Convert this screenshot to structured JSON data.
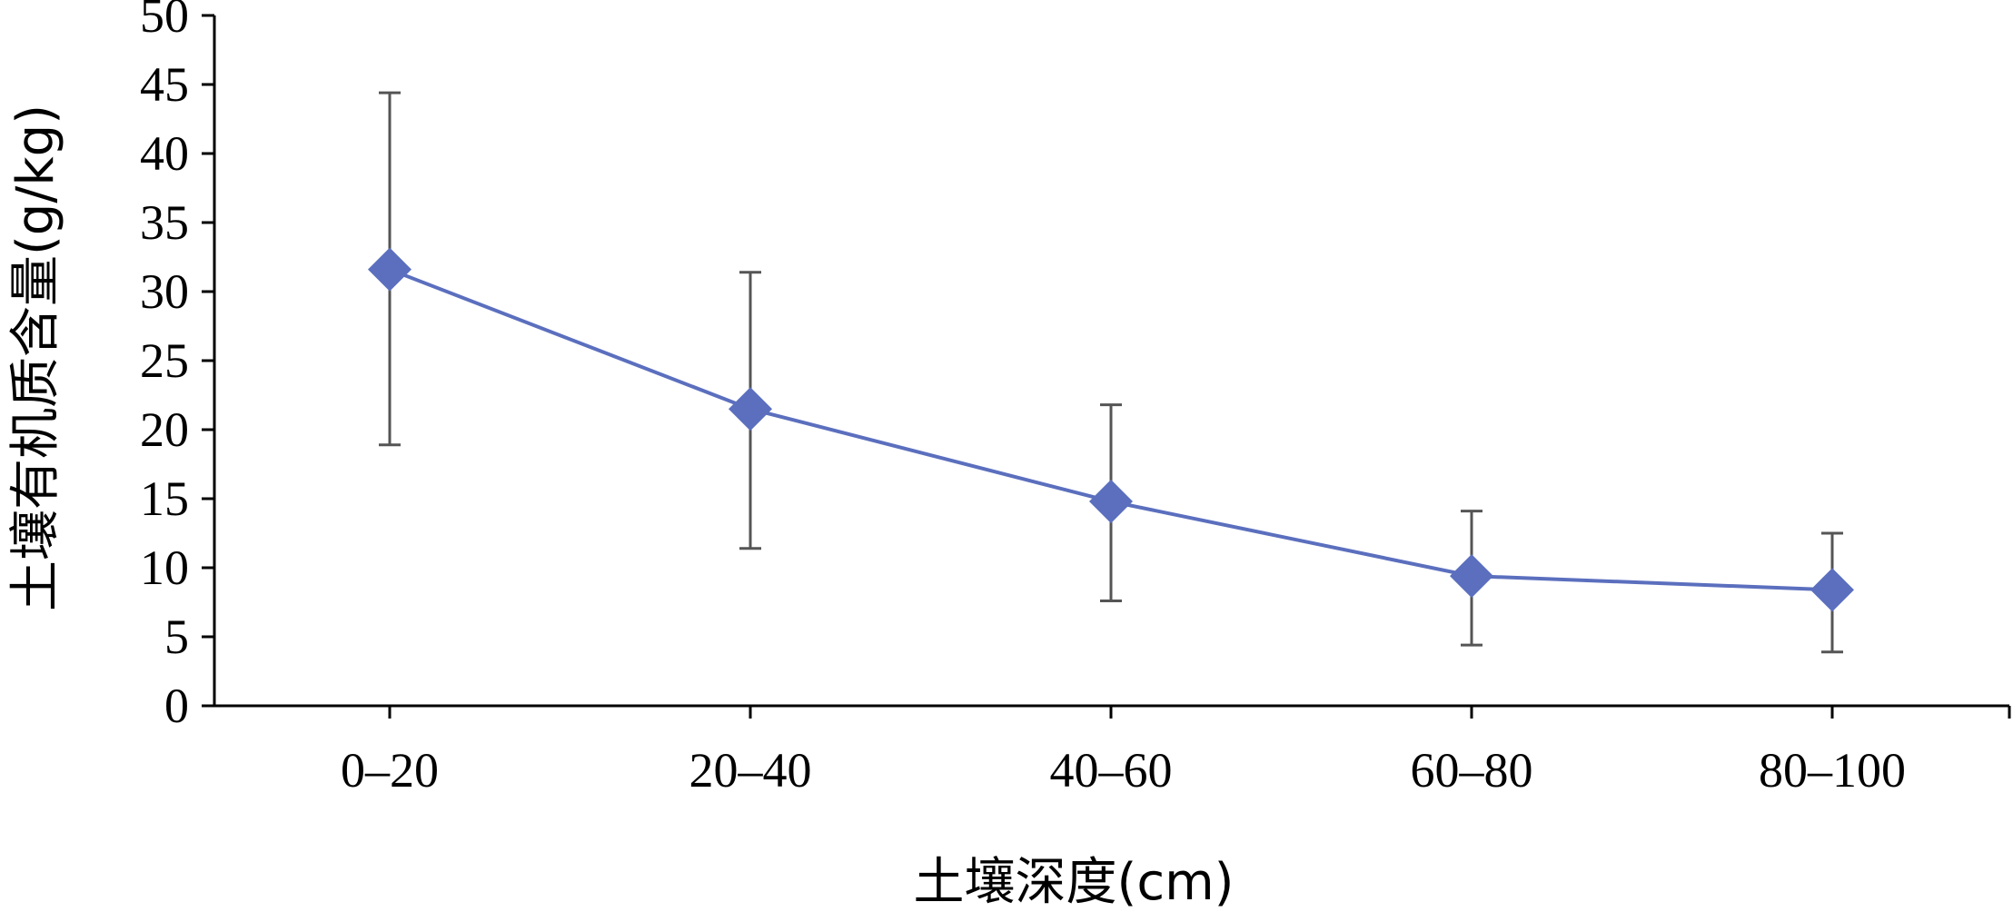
{
  "chart_data": {
    "type": "line",
    "title": "",
    "xlabel": "土壤深度(cm)",
    "ylabel": "土壤有机质含量(g/kg)",
    "categories": [
      "0–20",
      "20–40",
      "40–60",
      "60–80",
      "80–100"
    ],
    "series": [
      {
        "values": [
          31.6,
          21.5,
          14.8,
          9.4,
          8.4
        ],
        "error_low": [
          18.9,
          11.4,
          7.6,
          4.4,
          3.9
        ],
        "error_high": [
          44.4,
          31.4,
          21.8,
          14.1,
          12.5
        ],
        "color": "#5b6fbe",
        "marker": "diamond"
      }
    ],
    "ylim": [
      0,
      50
    ],
    "yticks": [
      0,
      5,
      10,
      15,
      20,
      25,
      30,
      35,
      40,
      45,
      50
    ],
    "grid": false,
    "errorbar_color": "#555555"
  }
}
